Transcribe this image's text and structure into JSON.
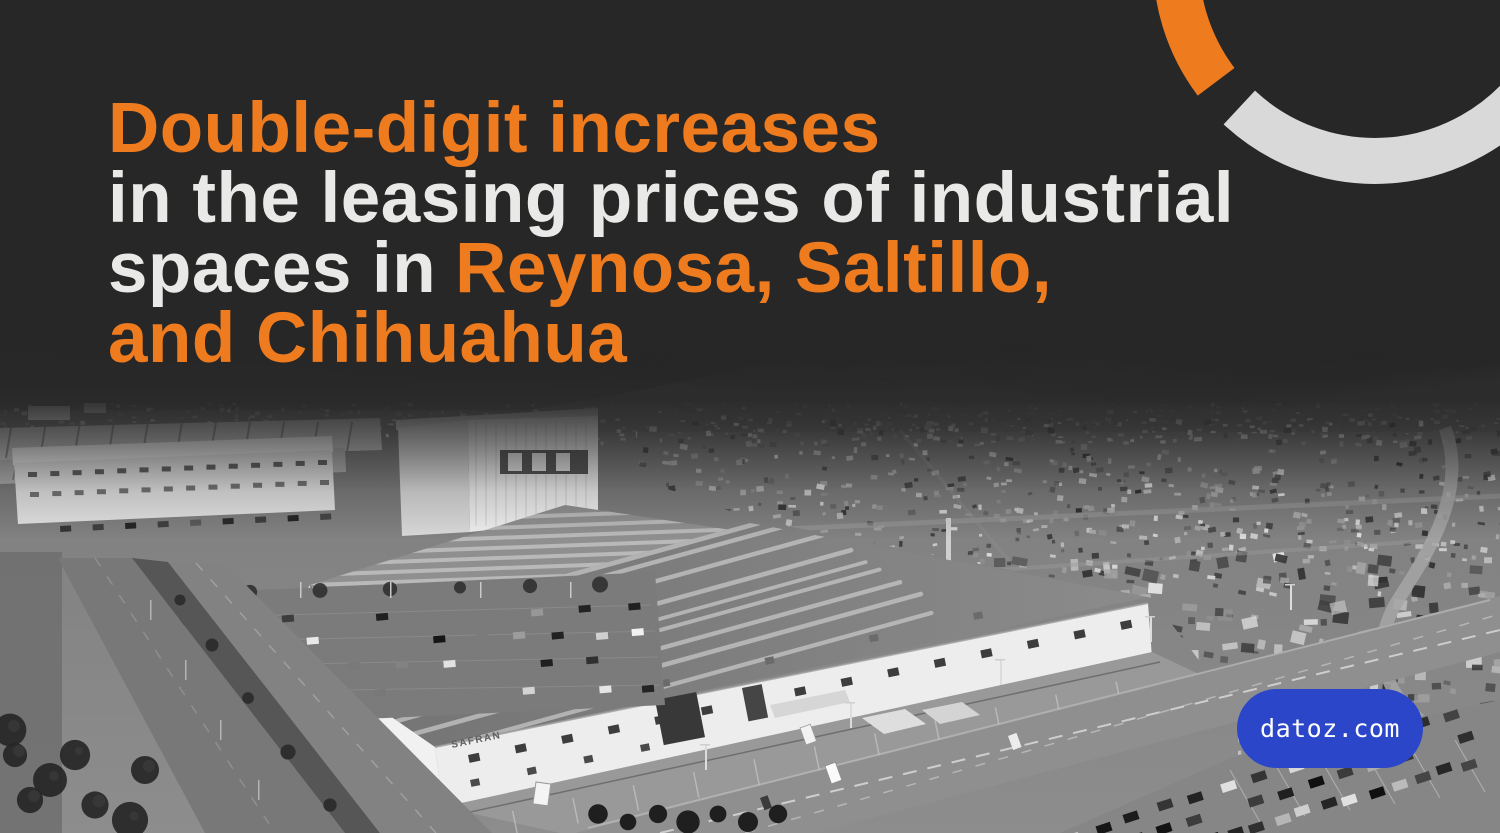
{
  "headline": {
    "line1": "Double-digit increases",
    "line2": "in the leasing prices of industrial",
    "line3_white": "spaces in",
    "line3_orange": "Reynosa, Saltillo,",
    "line4": "and Chihuahua"
  },
  "cta": {
    "label": "datoz.com"
  },
  "photo": {
    "building_label": "SAFRAN"
  },
  "colors": {
    "background": "#272727",
    "accent_orange": "#ef7b1f",
    "headline_white": "#e9e9e7",
    "cta_blue": "#2b46c8",
    "cta_text": "#ffffff",
    "arc_gray": "#d9d9d9"
  }
}
